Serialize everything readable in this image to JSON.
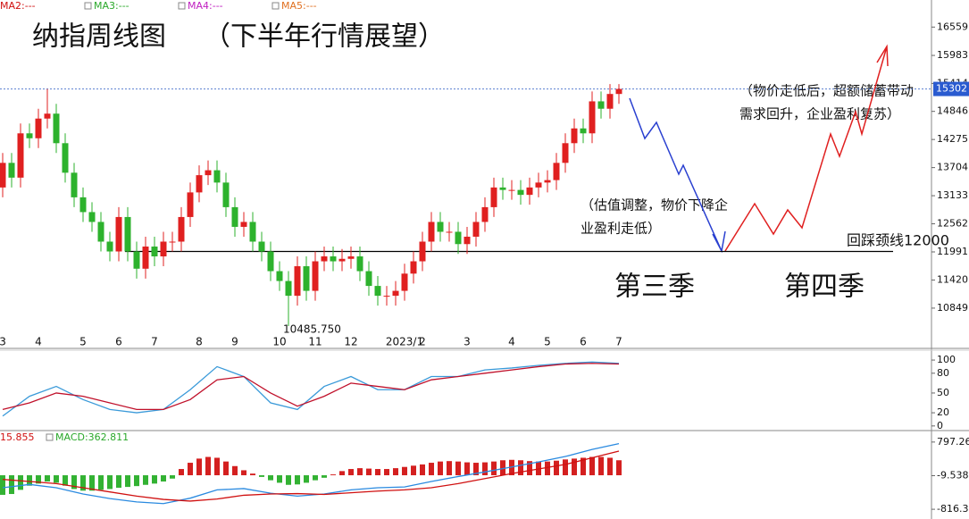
{
  "chart_data": [
    {
      "type": "candlestick",
      "title": "纳指周线图",
      "subtitle": "（下半年行情展望）",
      "annotations": [
        "（物价走低后，超额储蓄带动",
        "需求回升，企业盈利复苏）",
        "（估值调整，物价下降企",
        "业盈利走低）",
        "回踩颈线12000",
        "第三季",
        "第四季"
      ],
      "ma_labels": [
        {
          "text": "MA2:---",
          "color": "#d01010"
        },
        {
          "text": "MA3:---",
          "color": "#2aa82a"
        },
        {
          "text": "MA4:---",
          "color": "#c020c0"
        },
        {
          "text": "MA5:---",
          "color": "#e07020"
        }
      ],
      "up_color": "#e02020",
      "down_color": "#2db22d",
      "categories": [
        "3",
        null,
        null,
        null,
        "4",
        null,
        null,
        null,
        null,
        "5",
        null,
        null,
        null,
        "6",
        null,
        null,
        null,
        "7",
        null,
        null,
        null,
        null,
        "8",
        null,
        null,
        null,
        "9",
        null,
        null,
        null,
        null,
        "10",
        null,
        null,
        null,
        "11",
        null,
        null,
        null,
        "12",
        null,
        null,
        null,
        null,
        null,
        "2023/1",
        null,
        "2",
        null,
        null,
        null,
        null,
        "3",
        null,
        null,
        null,
        null,
        "4",
        null,
        null,
        null,
        "5",
        null,
        null,
        null,
        "6",
        null,
        null,
        null,
        "7"
      ],
      "open": [
        13300,
        13800,
        13500,
        14400,
        14300,
        14700,
        14800,
        14200,
        13600,
        13100,
        12800,
        12600,
        12200,
        12000,
        12700,
        12000,
        11650,
        12100,
        11900,
        12200,
        12200,
        12700,
        13200,
        13550,
        13650,
        13400,
        12900,
        12500,
        12600,
        12200,
        12000,
        11600,
        11400,
        11100,
        11700,
        11200,
        11800,
        11900,
        11800,
        11850,
        11900,
        11600,
        11300,
        11100,
        11100,
        11200,
        11550,
        11800,
        12200,
        12600,
        12400,
        12400,
        12150,
        12300,
        12600,
        12900,
        13300,
        13250,
        13250,
        13150,
        13300,
        13400,
        13450,
        13800,
        14200,
        14500,
        14400,
        15050,
        14900,
        15200
      ],
      "high": [
        14000,
        14000,
        14600,
        14600,
        14900,
        15300,
        15000,
        14400,
        13800,
        13300,
        13000,
        12800,
        12400,
        12900,
        12900,
        12200,
        12300,
        12300,
        12400,
        12400,
        12900,
        13400,
        13750,
        13850,
        13850,
        13600,
        13100,
        12800,
        12800,
        12400,
        12200,
        11800,
        11600,
        11900,
        11900,
        12000,
        12100,
        12100,
        12050,
        12100,
        12100,
        11800,
        11500,
        11300,
        11400,
        11750,
        12000,
        12400,
        12800,
        12800,
        12600,
        12600,
        12500,
        12800,
        13100,
        13500,
        13500,
        13450,
        13450,
        13500,
        13600,
        13650,
        14000,
        14400,
        14700,
        14700,
        15250,
        15250,
        15400,
        15400
      ],
      "low": [
        13100,
        13300,
        13300,
        14100,
        14100,
        14500,
        14000,
        13400,
        12900,
        12600,
        12400,
        12000,
        11800,
        11800,
        11800,
        11450,
        11450,
        11700,
        11700,
        12000,
        12000,
        12500,
        13000,
        13350,
        13200,
        12700,
        12300,
        12300,
        12000,
        11800,
        11400,
        11200,
        10485.75,
        10900,
        11000,
        11000,
        11600,
        11600,
        11600,
        11650,
        11400,
        11100,
        10900,
        10900,
        10900,
        11000,
        11350,
        11600,
        12000,
        12200,
        12200,
        11950,
        11950,
        12100,
        12400,
        12700,
        13050,
        13050,
        12950,
        12950,
        13100,
        13200,
        13250,
        13600,
        14000,
        14200,
        14200,
        14700,
        14700,
        15000
      ],
      "close": [
        13800,
        13500,
        14400,
        14300,
        14700,
        14800,
        14200,
        13600,
        13100,
        12800,
        12600,
        12200,
        12000,
        12700,
        12000,
        11650,
        12100,
        11900,
        12200,
        12200,
        12700,
        13200,
        13550,
        13650,
        13400,
        12900,
        12500,
        12600,
        12200,
        12000,
        11600,
        11400,
        11100,
        11700,
        11200,
        11800,
        11900,
        11800,
        11850,
        11900,
        11600,
        11300,
        11100,
        11100,
        11200,
        11550,
        11800,
        12200,
        12600,
        12400,
        12400,
        12150,
        12300,
        12600,
        12900,
        13300,
        13250,
        13250,
        13150,
        13300,
        13400,
        13450,
        13800,
        14200,
        14500,
        14400,
        15050,
        14900,
        15200,
        15302
      ],
      "low_label": "10485.750",
      "neckline": 12000,
      "ylim": [
        10031,
        17109
      ],
      "yticks": [
        16559,
        15983,
        15414,
        14846,
        14275,
        13704,
        13133,
        12562,
        11991,
        11420,
        10849
      ]
    },
    {
      "type": "line",
      "x": [
        0,
        3,
        6,
        9,
        12,
        15,
        18,
        21,
        24,
        27,
        30,
        33,
        36,
        39,
        42,
        45,
        48,
        51,
        54,
        57,
        60,
        63,
        66,
        69
      ],
      "series": [
        {
          "color": "#3a9ad9",
          "values": [
            15,
            45,
            60,
            40,
            25,
            20,
            25,
            55,
            90,
            75,
            35,
            25,
            60,
            75,
            55,
            55,
            75,
            75,
            85,
            88,
            92,
            95,
            97,
            95
          ]
        },
        {
          "color": "#c0102a",
          "values": [
            25,
            35,
            50,
            45,
            35,
            25,
            25,
            40,
            70,
            75,
            50,
            30,
            45,
            65,
            60,
            55,
            70,
            75,
            80,
            85,
            90,
            94,
            95,
            94
          ]
        }
      ],
      "ylim": [
        -7,
        115
      ],
      "yticks": [
        100,
        80,
        50,
        20,
        0
      ]
    },
    {
      "type": "macd",
      "legend": [
        {
          "text": "15.855",
          "color": "#d01010"
        },
        {
          "text": "MACD:362.811",
          "color": "#2aa82a"
        }
      ],
      "up_color": "#d42020",
      "down_color": "#33b233",
      "histogram": [
        -470,
        -450,
        -350,
        -250,
        -200,
        -150,
        -180,
        -250,
        -330,
        -370,
        -370,
        -350,
        -330,
        -300,
        -280,
        -260,
        -230,
        -200,
        -150,
        -80,
        150,
        300,
        400,
        440,
        420,
        330,
        220,
        120,
        40,
        -40,
        -120,
        -180,
        -230,
        -220,
        -180,
        -120,
        -60,
        20,
        100,
        150,
        170,
        160,
        150,
        150,
        170,
        200,
        230,
        260,
        300,
        330,
        340,
        330,
        310,
        300,
        310,
        330,
        360,
        370,
        360,
        340,
        330,
        330,
        350,
        380,
        400,
        420,
        440,
        440,
        420,
        360
      ],
      "x": [
        0,
        3,
        6,
        9,
        12,
        15,
        18,
        21,
        24,
        27,
        30,
        33,
        36,
        39,
        42,
        45,
        48,
        51,
        54,
        57,
        60,
        63,
        66,
        69
      ],
      "series": [
        {
          "color": "#2a8ae0",
          "values": [
            -300,
            -220,
            -300,
            -450,
            -560,
            -640,
            -680,
            -550,
            -350,
            -320,
            -430,
            -500,
            -450,
            -350,
            -300,
            -280,
            -150,
            -30,
            80,
            200,
            320,
            450,
            620,
            760
          ]
        },
        {
          "color": "#d01010",
          "values": [
            -100,
            -150,
            -200,
            -300,
            -400,
            -500,
            -580,
            -620,
            -570,
            -480,
            -450,
            -440,
            -460,
            -420,
            -380,
            -350,
            -300,
            -200,
            -80,
            40,
            150,
            260,
            420,
            580
          ]
        }
      ],
      "ylim": [
        -1050,
        1030
      ],
      "yticks": [
        797.26,
        -9.538,
        -816.3
      ]
    }
  ]
}
